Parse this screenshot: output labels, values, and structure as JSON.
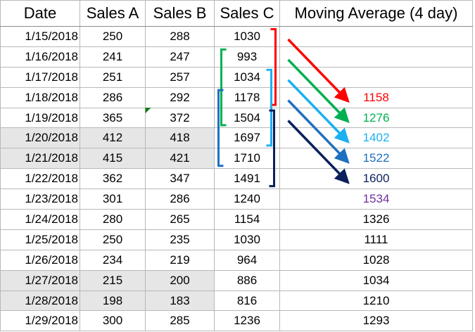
{
  "headers": [
    "Date",
    "Sales A",
    "Sales B",
    "Sales C",
    "Moving Average (4 day)"
  ],
  "rows": [
    {
      "date": "1/15/2018",
      "a": "250",
      "b": "288",
      "c": "1030",
      "ma": "",
      "shade": false
    },
    {
      "date": "1/16/2018",
      "a": "241",
      "b": "247",
      "c": "993",
      "ma": "",
      "shade": false
    },
    {
      "date": "1/17/2018",
      "a": "251",
      "b": "257",
      "c": "1034",
      "ma": "",
      "shade": false
    },
    {
      "date": "1/18/2018",
      "a": "286",
      "b": "292",
      "c": "1178",
      "ma": "1158",
      "shade": false
    },
    {
      "date": "1/19/2018",
      "a": "365",
      "b": "372",
      "c": "1504",
      "ma": "1276",
      "shade": false
    },
    {
      "date": "1/20/2018",
      "a": "412",
      "b": "418",
      "c": "1697",
      "ma": "1402",
      "shade": true
    },
    {
      "date": "1/21/2018",
      "a": "415",
      "b": "421",
      "c": "1710",
      "ma": "1522",
      "shade": true
    },
    {
      "date": "1/22/2018",
      "a": "362",
      "b": "347",
      "c": "1491",
      "ma": "1600",
      "shade": false
    },
    {
      "date": "1/23/2018",
      "a": "301",
      "b": "286",
      "c": "1240",
      "ma": "1534",
      "shade": false
    },
    {
      "date": "1/24/2018",
      "a": "280",
      "b": "265",
      "c": "1154",
      "ma": "1326",
      "shade": false
    },
    {
      "date": "1/25/2018",
      "a": "250",
      "b": "235",
      "c": "1030",
      "ma": "1111",
      "shade": false
    },
    {
      "date": "1/26/2018",
      "a": "234",
      "b": "219",
      "c": "964",
      "ma": "1028",
      "shade": false
    },
    {
      "date": "1/27/2018",
      "a": "215",
      "b": "200",
      "c": "886",
      "ma": "1034",
      "shade": true
    },
    {
      "date": "1/28/2018",
      "a": "198",
      "b": "183",
      "c": "816",
      "ma": "1210",
      "shade": true
    },
    {
      "date": "1/29/2018",
      "a": "300",
      "b": "285",
      "c": "1236",
      "ma": "1293",
      "shade": false
    }
  ],
  "highlight_colors": [
    "#ff0000",
    "#00b050",
    "#1cb0f0",
    "#1f6fc0",
    "#0a1f5c",
    "#7030a0"
  ],
  "windows": [
    {
      "start_row": 0,
      "end_row": 3,
      "color": "#ff0000"
    },
    {
      "start_row": 1,
      "end_row": 4,
      "color": "#00b050"
    },
    {
      "start_row": 2,
      "end_row": 5,
      "color": "#1cb0f0"
    },
    {
      "start_row": 3,
      "end_row": 6,
      "color": "#1f6fc0"
    },
    {
      "start_row": 4,
      "end_row": 7,
      "color": "#0a1f5c"
    }
  ],
  "ma_text_colors": {
    "3": "#ff0000",
    "4": "#00b050",
    "5": "#1cb0f0",
    "6": "#1f6fc0",
    "7": "#0a1f5c",
    "8": "#7030a0"
  }
}
